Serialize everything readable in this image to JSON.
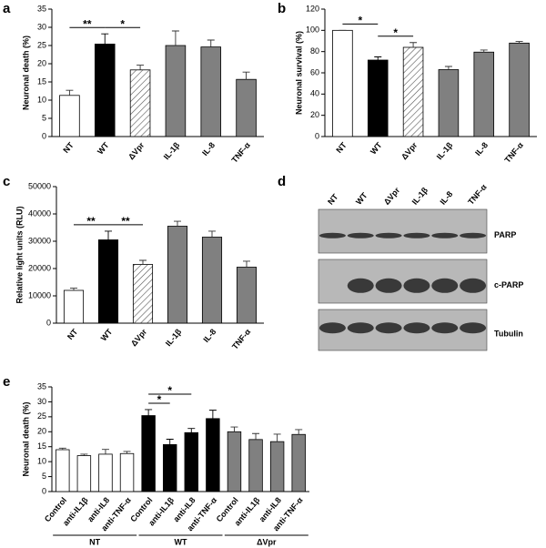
{
  "chart_data": [
    {
      "type": "bar",
      "letter": "a",
      "ylabel": "Neuronal death (%)",
      "categories": [
        "NT",
        "WT",
        "ΔVpr",
        "IL-1β",
        "IL-8",
        "TNF-α"
      ],
      "values": [
        11.3,
        25.4,
        18.3,
        25,
        24.6,
        15.7
      ],
      "errors": [
        1.4,
        2.8,
        1.3,
        4,
        1.9,
        2
      ],
      "colors": [
        "#ffffff",
        "#000000",
        "#ffffff",
        "#808080",
        "#808080",
        "#808080"
      ],
      "hatched": [
        false,
        false,
        true,
        false,
        false,
        false
      ],
      "ylim": [
        0,
        35
      ],
      "yticks": [
        0,
        5,
        10,
        15,
        20,
        25,
        30,
        35
      ],
      "brackets": [
        {
          "text": "**",
          "from": 0,
          "to": 1
        },
        {
          "text": "*",
          "from": 1,
          "to": 2
        }
      ]
    },
    {
      "type": "bar",
      "letter": "b",
      "ylabel": "Neuronal survival (%)",
      "categories": [
        "NT",
        "WT",
        "ΔVpr",
        "IL-1β",
        "IL-8",
        "TNF-α"
      ],
      "values": [
        100,
        72,
        84,
        63,
        79.5,
        88
      ],
      "errors": [
        0,
        3,
        4.5,
        3,
        2,
        1.5
      ],
      "colors": [
        "#ffffff",
        "#000000",
        "#ffffff",
        "#808080",
        "#808080",
        "#808080"
      ],
      "hatched": [
        false,
        false,
        true,
        false,
        false,
        false
      ],
      "ylim": [
        0,
        120
      ],
      "yticks": [
        0,
        20,
        40,
        60,
        80,
        100,
        120
      ],
      "brackets": [
        {
          "text": "*",
          "from": 0,
          "to": 1
        },
        {
          "text": "*",
          "from": 1,
          "to": 2
        }
      ]
    },
    {
      "type": "bar",
      "letter": "c",
      "ylabel": "Relative light units (RLU)",
      "categories": [
        "NT",
        "WT",
        "ΔVpr",
        "IL-1β",
        "IL-8",
        "TNF-α"
      ],
      "values": [
        12000,
        30500,
        21500,
        35500,
        31500,
        20500
      ],
      "errors": [
        800,
        3200,
        1500,
        1800,
        2200,
        2200
      ],
      "colors": [
        "#ffffff",
        "#000000",
        "#ffffff",
        "#808080",
        "#808080",
        "#808080"
      ],
      "hatched": [
        false,
        false,
        true,
        false,
        false,
        false
      ],
      "ylim": [
        0,
        50000
      ],
      "yticks": [
        0,
        10000,
        20000,
        30000,
        40000,
        50000
      ],
      "brackets": [
        {
          "text": "**",
          "from": 0,
          "to": 1
        },
        {
          "text": "**",
          "from": 1,
          "to": 2
        }
      ]
    },
    {
      "type": "blot",
      "letter": "d",
      "lanes": [
        "NT",
        "WT",
        "ΔVpr",
        "IL-1β",
        "IL-8",
        "TNF-α"
      ],
      "bands": [
        "PARP",
        "c-PARP",
        "Tubulin"
      ]
    },
    {
      "type": "bar",
      "letter": "e",
      "ylabel": "Neuronal death (%)",
      "categories": [
        "Control",
        "anti-IL1β",
        "anti-IL8",
        "anti-TNF-α",
        "Control",
        "anti-IL1β",
        "anti-IL8",
        "anti-TNF-α",
        "Control",
        "anti-IL1β",
        "anti-IL8",
        "anti-TNF-α"
      ],
      "values": [
        14,
        12,
        12.5,
        12.7,
        25.4,
        15.7,
        19.7,
        24.4,
        20,
        17.4,
        16.7,
        19.1
      ],
      "errors": [
        0.5,
        0.5,
        1.6,
        0.7,
        2,
        1.8,
        1.4,
        2.8,
        1.6,
        2,
        2.5,
        1.6
      ],
      "colors": [
        "#ffffff",
        "#ffffff",
        "#ffffff",
        "#ffffff",
        "#000000",
        "#000000",
        "#000000",
        "#000000",
        "#808080",
        "#808080",
        "#808080",
        "#808080"
      ],
      "hatched": [
        false,
        false,
        false,
        false,
        false,
        false,
        false,
        false,
        false,
        false,
        false,
        false
      ],
      "ylim": [
        0,
        35
      ],
      "yticks": [
        0,
        5,
        10,
        15,
        20,
        25,
        30,
        35
      ],
      "brackets": [
        {
          "text": "*",
          "from": 4,
          "to": 5
        },
        {
          "text": "*",
          "from": 4,
          "to": 6
        }
      ],
      "groups": [
        {
          "label": "NT",
          "from": 0,
          "to": 3
        },
        {
          "label": "WT",
          "from": 4,
          "to": 7
        },
        {
          "label": "ΔVpr",
          "from": 8,
          "to": 11
        }
      ]
    }
  ]
}
